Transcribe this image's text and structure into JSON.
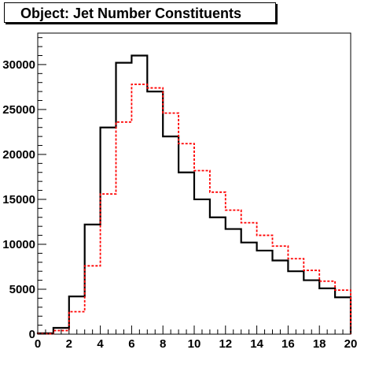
{
  "chart_data": {
    "type": "histogram",
    "title": "Object: Jet Number Constituents",
    "xlabel": "",
    "ylabel": "",
    "xlim": [
      0,
      20
    ],
    "ylim": [
      0,
      33500
    ],
    "grid": false,
    "legend": "none",
    "x_ticks": [
      0,
      2,
      4,
      6,
      8,
      10,
      12,
      14,
      16,
      18,
      20
    ],
    "y_ticks": [
      0,
      5000,
      10000,
      15000,
      20000,
      25000,
      30000
    ],
    "bin_edges": [
      0,
      1,
      2,
      3,
      4,
      5,
      6,
      7,
      8,
      9,
      10,
      11,
      12,
      13,
      14,
      15,
      16,
      17,
      18,
      19,
      20
    ],
    "series": [
      {
        "color": "#000000",
        "style": "solid",
        "values": [
          100,
          700,
          4200,
          12200,
          23000,
          30200,
          31000,
          27000,
          22000,
          18000,
          15000,
          13000,
          11700,
          10200,
          9300,
          8200,
          7000,
          6000,
          5100,
          4100
        ]
      },
      {
        "color": "#ff0000",
        "style": "dashed",
        "values": [
          50,
          400,
          2500,
          7600,
          15600,
          23600,
          27800,
          27400,
          24600,
          21200,
          18200,
          15800,
          13800,
          12400,
          11000,
          9800,
          8400,
          7100,
          5900,
          4900
        ]
      }
    ]
  }
}
